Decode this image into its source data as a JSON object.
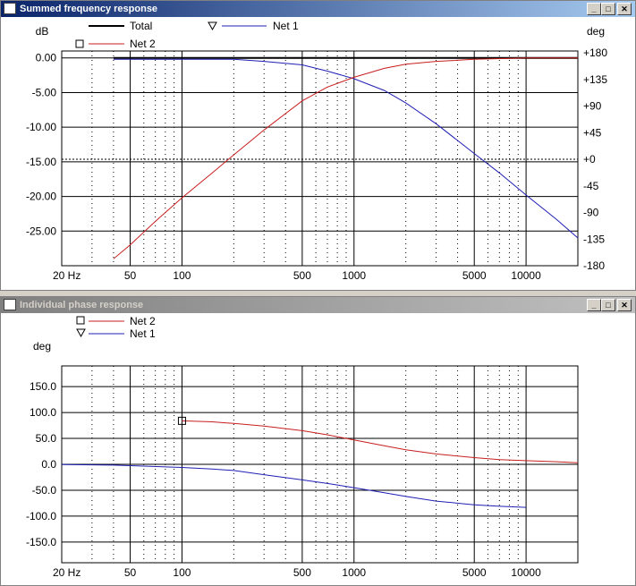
{
  "windows": [
    {
      "title": "Summed frequency response",
      "active": true
    },
    {
      "title": "Individual phase response",
      "active": false
    }
  ],
  "chart_data": [
    {
      "type": "line",
      "xscale": "log",
      "xlim": [
        20,
        20000
      ],
      "x_ticks": [
        "20 Hz",
        "50",
        "100",
        "500",
        "1000",
        "5000",
        "10000"
      ],
      "ylabel": "dB",
      "ylim": [
        -30,
        1
      ],
      "y_ticks": [
        "0.00",
        "-5.00",
        "-10.00",
        "-15.00",
        "-20.00",
        "-25.00"
      ],
      "y2label": "deg",
      "y2_ticks": [
        "+180",
        "+135",
        "+90",
        "+45",
        "+0",
        "-45",
        "-90",
        "-135",
        "-180"
      ],
      "legend": [
        "Total",
        "Net 1",
        "Net 2"
      ],
      "series": [
        {
          "name": "Total",
          "color": "#000000",
          "x": [
            40,
            100,
            200,
            500,
            1000,
            2000,
            5000,
            10000,
            20000
          ],
          "y": [
            0,
            0,
            0,
            0,
            0,
            0,
            0,
            0,
            0
          ]
        },
        {
          "name": "Net 1",
          "color": "#1f1fb4",
          "x": [
            40,
            100,
            200,
            300,
            500,
            700,
            1000,
            1500,
            2000,
            3000,
            5000,
            7000,
            10000,
            15000,
            20000
          ],
          "y": [
            -0.2,
            -0.2,
            -0.2,
            -0.5,
            -1.0,
            -1.9,
            -3.0,
            -4.7,
            -6.5,
            -9.5,
            -13.8,
            -16.6,
            -19.8,
            -23.3,
            -26.0
          ]
        },
        {
          "name": "Net 2",
          "color": "#c81e1e",
          "x": [
            40,
            50,
            70,
            100,
            150,
            200,
            300,
            500,
            700,
            1000,
            1500,
            2000,
            3000,
            5000,
            10000,
            20000
          ],
          "y": [
            -29.0,
            -27.0,
            -23.6,
            -20.2,
            -16.6,
            -14.0,
            -10.4,
            -6.2,
            -4.2,
            -2.8,
            -1.5,
            -0.9,
            -0.5,
            -0.2,
            0,
            0
          ]
        }
      ]
    },
    {
      "type": "line",
      "xscale": "log",
      "xlim": [
        20,
        20000
      ],
      "x_ticks": [
        "20 Hz",
        "50",
        "100",
        "500",
        "1000",
        "5000",
        "10000"
      ],
      "ylabel": "deg",
      "ylim": [
        -190,
        190
      ],
      "y_ticks": [
        "150.0",
        "100.0",
        "50.0",
        "0.0",
        "-50.0",
        "-100.0",
        "-150.0"
      ],
      "legend": [
        "Net 2",
        "Net 1"
      ],
      "series": [
        {
          "name": "Net 2",
          "color": "#c81e1e",
          "x": [
            100,
            150,
            200,
            300,
            500,
            700,
            1000,
            1500,
            2000,
            3000,
            5000,
            7000,
            10000,
            15000,
            20000
          ],
          "y": [
            84,
            82,
            79,
            74,
            65,
            57,
            47,
            36,
            28,
            20,
            13,
            9,
            7,
            5,
            3
          ]
        },
        {
          "name": "Net 1",
          "color": "#1f1fb4",
          "x": [
            20,
            40,
            60,
            100,
            150,
            200,
            300,
            500,
            700,
            1000,
            1500,
            2000,
            3000,
            5000,
            7000,
            10000
          ],
          "y": [
            -0.5,
            -1.5,
            -3.5,
            -6,
            -9,
            -12,
            -20,
            -30,
            -37,
            -45,
            -55,
            -62,
            -71,
            -78,
            -81,
            -83
          ]
        }
      ]
    }
  ]
}
